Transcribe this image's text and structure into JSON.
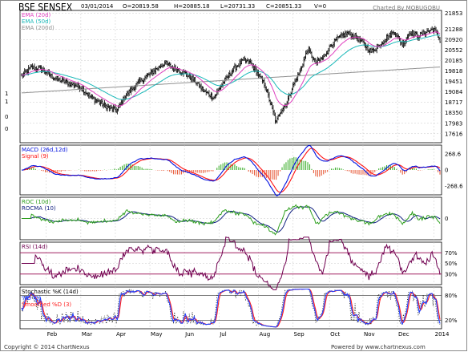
{
  "header": {
    "symbol": "BSE SENSEX",
    "date": "03/01/2014",
    "open": "O=20819.58",
    "high": "H=20885.18",
    "low": "L=20731.33",
    "close": "C=20851.33",
    "volume": "V=0",
    "charted_by": "Charted By MOBUGOBU"
  },
  "footer": {
    "copyright": "Copyright © 2014 ChartNexus",
    "powered_by": "Powered by www.chartnexus.com"
  },
  "colors": {
    "price_bar": "#000000",
    "ema20": "#e040c0",
    "ema50": "#18b8b8",
    "ema200": "#909090",
    "macd": "#0010e0",
    "signal": "#ff1010",
    "hist_up": "#40b030",
    "hist_down": "#e86040",
    "roc": "#30a020",
    "rocma": "#102080",
    "rsi": "#700050",
    "rsi_guides": "#a02060",
    "stoch_k": "#2040ff",
    "stoch_d": "#ff2020",
    "stoch_k_raw": "#000000"
  },
  "chart_data": [
    {
      "type": "line",
      "name": "price",
      "series_type": "ohlc",
      "legend": [
        "EMA (20d)",
        "EMA (50d)",
        "EMA (200d)"
      ],
      "y_ticks": [
        "21853",
        "21288",
        "20920",
        "20552",
        "20185",
        "19818",
        "19451",
        "19084",
        "18717",
        "18350",
        "17983",
        "17616"
      ],
      "ylim": [
        17300,
        21950
      ],
      "x_months": [
        "Feb",
        "Mar",
        "Apr",
        "May",
        "Jun",
        "Jul",
        "Aug",
        "Sep",
        "Oct",
        "Nov",
        "Dec",
        "2014"
      ],
      "anchors": [
        [
          0,
          19650
        ],
        [
          10,
          19950
        ],
        [
          20,
          19900
        ],
        [
          32,
          19600
        ],
        [
          42,
          19450
        ],
        [
          52,
          19350
        ],
        [
          60,
          19250
        ],
        [
          70,
          18900
        ],
        [
          80,
          18700
        ],
        [
          90,
          18500
        ],
        [
          97,
          18450
        ],
        [
          105,
          18950
        ],
        [
          115,
          19300
        ],
        [
          125,
          19600
        ],
        [
          135,
          19850
        ],
        [
          145,
          20100
        ],
        [
          155,
          19900
        ],
        [
          165,
          19750
        ],
        [
          175,
          19500
        ],
        [
          185,
          19100
        ],
        [
          195,
          18900
        ],
        [
          205,
          19450
        ],
        [
          215,
          19900
        ],
        [
          225,
          20200
        ],
        [
          232,
          20100
        ],
        [
          240,
          19700
        ],
        [
          247,
          19300
        ],
        [
          252,
          18700
        ],
        [
          258,
          18000
        ],
        [
          262,
          18400
        ],
        [
          268,
          18650
        ],
        [
          275,
          19300
        ],
        [
          282,
          19800
        ],
        [
          290,
          20600
        ],
        [
          298,
          20100
        ],
        [
          306,
          20300
        ],
        [
          314,
          20750
        ],
        [
          322,
          21000
        ],
        [
          330,
          21150
        ],
        [
          338,
          21050
        ],
        [
          346,
          20800
        ],
        [
          354,
          20500
        ],
        [
          362,
          20700
        ],
        [
          370,
          21000
        ],
        [
          378,
          21200
        ],
        [
          386,
          20750
        ],
        [
          394,
          21200
        ],
        [
          402,
          21050
        ],
        [
          410,
          21200
        ],
        [
          418,
          21300
        ],
        [
          424,
          20900
        ]
      ]
    },
    {
      "type": "line",
      "name": "MACD (26d,12d)",
      "legend": [
        "MACD (26d,12d)",
        "Signal (9)"
      ],
      "y_ticks": [
        "268.6",
        "0",
        "-268.6"
      ],
      "ylim": [
        -420,
        420
      ]
    },
    {
      "type": "line",
      "name": "ROC",
      "legend": [
        "ROC (10d)",
        "ROCMA (10)"
      ],
      "y_ticks": [
        "0"
      ],
      "ylim": [
        -8,
        8
      ]
    },
    {
      "type": "line",
      "name": "RSI (14d)",
      "legend": [
        "RSI (14d)"
      ],
      "y_ticks": [
        "70%",
        "50%",
        "30%"
      ],
      "ylim": [
        10,
        90
      ]
    },
    {
      "type": "line",
      "name": "Stochastic",
      "legend": [
        "Stochastic %K (14d)",
        "%D (3)",
        "Smoothed %D (3)"
      ],
      "y_ticks": [
        "80%",
        "20%"
      ],
      "ylim": [
        0,
        100
      ]
    }
  ]
}
